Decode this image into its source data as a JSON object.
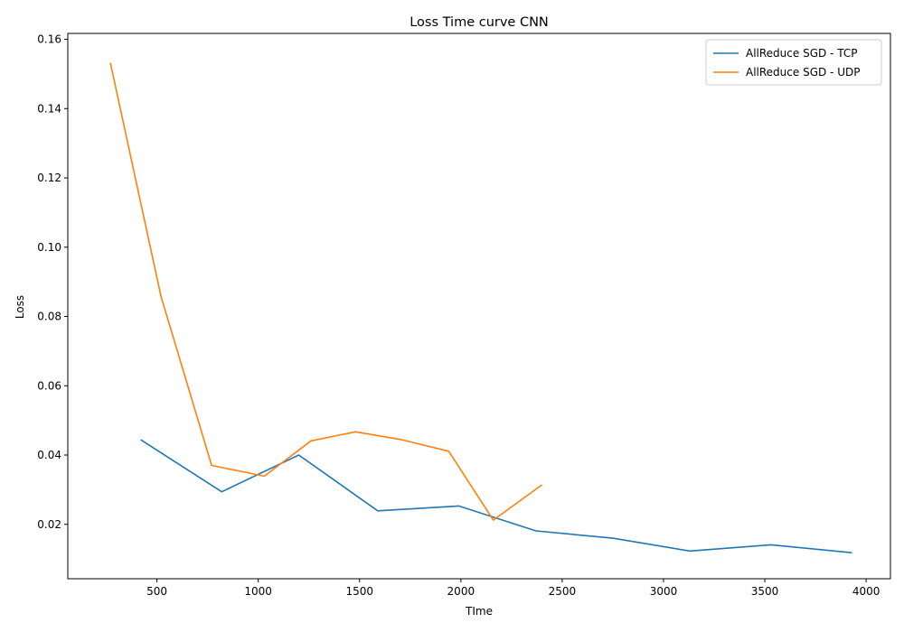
{
  "chart_data": {
    "type": "line",
    "title": "Loss Time curve CNN",
    "xlabel": "TIme",
    "ylabel": "Loss",
    "xlim": [
      60,
      4120
    ],
    "ylim": [
      0.0043,
      0.1617
    ],
    "xticks": [
      500,
      1000,
      1500,
      2000,
      2500,
      3000,
      3500,
      4000
    ],
    "yticks": [
      0.02,
      0.04,
      0.06,
      0.08,
      0.1,
      0.12,
      0.14,
      0.16
    ],
    "grid": false,
    "legend_position": "top-right",
    "series": [
      {
        "name": "AllReduce SGD - TCP",
        "color": "#1f77b4",
        "x": [
          420,
          820,
          1200,
          1590,
          1990,
          2370,
          2750,
          3130,
          3530,
          3930
        ],
        "y": [
          0.0444,
          0.0294,
          0.04,
          0.0239,
          0.0253,
          0.0181,
          0.016,
          0.0123,
          0.0141,
          0.0118
        ]
      },
      {
        "name": "AllReduce SGD - UDP",
        "color": "#ff7f0e",
        "x": [
          270,
          520,
          770,
          1030,
          1260,
          1480,
          1710,
          1940,
          2160,
          2400
        ],
        "y": [
          0.1532,
          0.0858,
          0.037,
          0.0339,
          0.0441,
          0.0467,
          0.0444,
          0.0411,
          0.0212,
          0.0314
        ]
      }
    ]
  }
}
